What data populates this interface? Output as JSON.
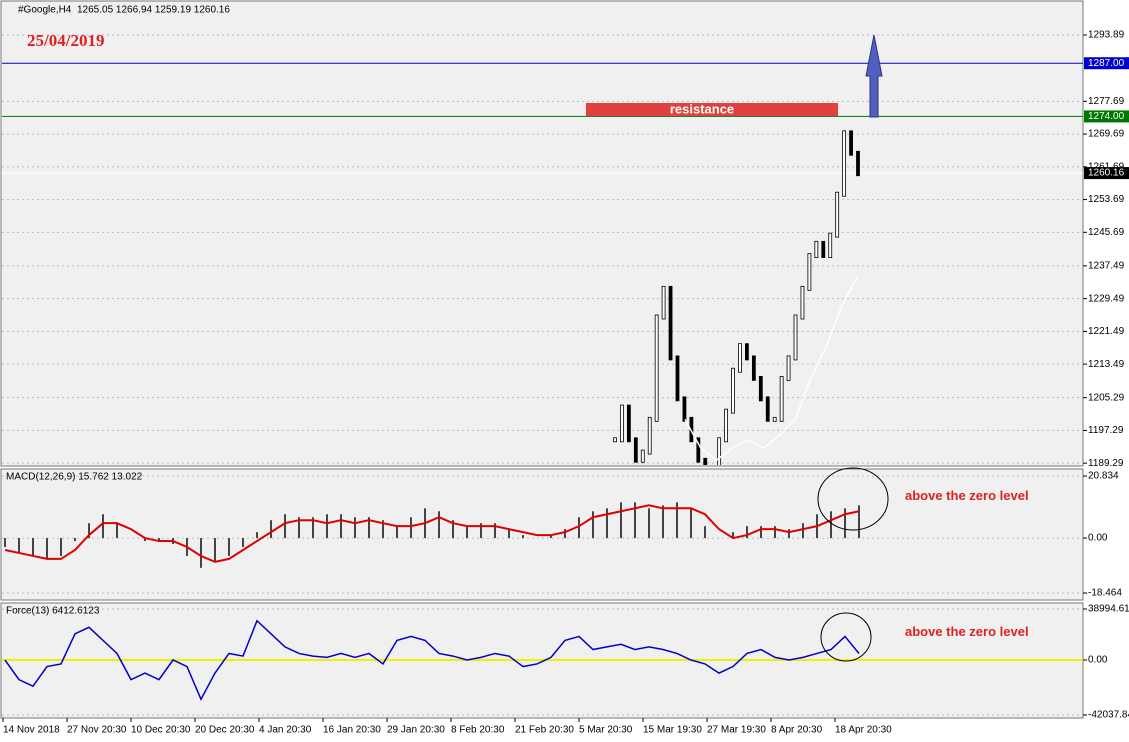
{
  "header": {
    "symbol": "#Google,H4",
    "ohlc": "1265.05 1266.94 1259.19 1260.16"
  },
  "date_note": "25/04/2019",
  "resistance_label": "resistance",
  "price_panel": {
    "ylim": [
      1188.6,
      1302.2
    ],
    "yticks": [
      1293.89,
      1277.69,
      1269.69,
      1261.69,
      1253.69,
      1245.69,
      1237.49,
      1229.49,
      1221.49,
      1213.49,
      1205.29,
      1197.29,
      1189.29
    ],
    "levels": [
      {
        "value": 1287,
        "label": "1287.00",
        "color": "#0000cc"
      },
      {
        "value": 1274,
        "label": "1274.00",
        "color": "#007700"
      }
    ],
    "current": {
      "value": 1260.16,
      "label": "1260.16"
    },
    "closes": [
      1195,
      1203,
      1195,
      1190,
      1192,
      1200,
      1225,
      1232,
      1215,
      1205,
      1200,
      1195,
      1190,
      1188,
      1185,
      1195,
      1202,
      1212,
      1218,
      1215,
      1210,
      1205,
      1200,
      1200,
      1210,
      1215,
      1225,
      1232,
      1240,
      1243,
      1240,
      1245,
      1255,
      1270,
      1265,
      1260
    ],
    "ma": [
      1200,
      1193,
      1190,
      1193,
      1195,
      1193,
      1196,
      1200,
      1210,
      1218,
      1228,
      1235
    ]
  },
  "macd_panel": {
    "label": "MACD(12,26,9) 15.762 13.022",
    "ylim": [
      -20.8,
      23.2
    ],
    "yticks": [
      20.834,
      {
        "value": 0,
        "label": "0.00"
      },
      -18.464
    ],
    "histogram": [
      -3,
      -5,
      -6,
      -7,
      -6,
      -1,
      5,
      8,
      5,
      0,
      -1,
      -1,
      -2,
      -6,
      -10,
      -8,
      -6,
      -3,
      2,
      6,
      8,
      7,
      7,
      8,
      8,
      7,
      7,
      6,
      4,
      7,
      10,
      9,
      6,
      4,
      5,
      5,
      3,
      1,
      0,
      1,
      3,
      7,
      9,
      10,
      12,
      12,
      10,
      11,
      12,
      10,
      4,
      0,
      2,
      4,
      4,
      4,
      3,
      5,
      8,
      9,
      10,
      11
    ],
    "signal": [
      -4,
      -5,
      -6,
      -7,
      -7,
      -4,
      1,
      5,
      5,
      3,
      0,
      -1,
      -1,
      -3,
      -6,
      -8,
      -7,
      -4,
      -1,
      2,
      5,
      6,
      6,
      5,
      6,
      5,
      6,
      5,
      4,
      4,
      5,
      7,
      5,
      4,
      4,
      4,
      3,
      2,
      1,
      1,
      2,
      4,
      7,
      8,
      9,
      10,
      11,
      10,
      10,
      10,
      8,
      3,
      0,
      1,
      3,
      3,
      2,
      3,
      4,
      6,
      8,
      9
    ],
    "note": "above the zero level"
  },
  "force_panel": {
    "label": "Force(13) 6412.6123",
    "ylim": [
      -44340,
      43580
    ],
    "yticks": [
      38994.613,
      {
        "value": 0,
        "label": "0.00"
      },
      -42037.846
    ],
    "values": [
      0,
      -15000,
      -20000,
      -5000,
      -3000,
      20000,
      25000,
      15000,
      5000,
      -15000,
      -10000,
      -15000,
      0,
      -5000,
      -30000,
      -10000,
      5000,
      3000,
      30000,
      20000,
      10000,
      5000,
      3000,
      2000,
      5000,
      2000,
      5000,
      -3000,
      15000,
      18000,
      15000,
      5000,
      3000,
      0,
      2000,
      5000,
      3000,
      -5000,
      -3000,
      2000,
      15000,
      18000,
      8000,
      10000,
      12000,
      8000,
      10000,
      8000,
      5000,
      0,
      -3000,
      -10000,
      -5000,
      5000,
      8000,
      2000,
      0,
      2000,
      5000,
      8000,
      18000,
      5000
    ],
    "note": "above the zero level"
  },
  "time_labels": [
    "14 Nov 2018",
    "27 Nov 20:30",
    "10 Dec 20:30",
    "20 Dec 20:30",
    "4 Jan 20:30",
    "16 Jan 20:30",
    "29 Jan 20:30",
    "8 Feb 20:30",
    "21 Feb 20:30",
    "5 Mar 20:30",
    "15 Mar 19:30",
    "27 Mar 19:30",
    "8 Apr 20:30",
    "18 Apr 20:30"
  ]
}
